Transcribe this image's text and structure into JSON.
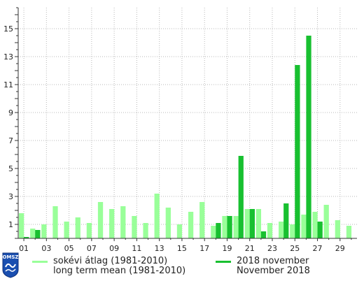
{
  "chart_data": {
    "type": "bar",
    "x": [
      1,
      2,
      3,
      4,
      5,
      6,
      7,
      8,
      9,
      10,
      11,
      12,
      13,
      14,
      15,
      16,
      17,
      18,
      19,
      20,
      21,
      22,
      23,
      24,
      25,
      26,
      27,
      28,
      29,
      30
    ],
    "x_tick_labels": [
      "01",
      "03",
      "05",
      "07",
      "09",
      "11",
      "13",
      "15",
      "17",
      "19",
      "21",
      "23",
      "25",
      "27",
      "29"
    ],
    "y_ticks": [
      1,
      3,
      5,
      7,
      9,
      11,
      13,
      15
    ],
    "ylim": [
      0,
      16.5
    ],
    "grid": true,
    "series": [
      {
        "name_lines": [
          "sokévi átlag (1981-2010)",
          "long term mean (1981-2010)"
        ],
        "color": "#99ff99",
        "values": [
          1.8,
          0.7,
          1.0,
          2.3,
          1.2,
          1.5,
          1.1,
          2.6,
          2.1,
          2.3,
          1.6,
          1.1,
          3.2,
          2.2,
          1.0,
          1.9,
          2.6,
          0.9,
          1.6,
          1.6,
          2.1,
          2.1,
          1.1,
          1.2,
          1.0,
          1.7,
          1.9,
          2.4,
          1.3,
          0.9
        ]
      },
      {
        "name_lines": [
          "2018 november",
          "November 2018"
        ],
        "color": "#18c030",
        "values": [
          0.1,
          0.6,
          0,
          0,
          0,
          0,
          0,
          0,
          0,
          0,
          0,
          0,
          0,
          0,
          0,
          0,
          0,
          1.1,
          1.6,
          5.9,
          2.1,
          0.5,
          0,
          2.5,
          12.4,
          14.5,
          1.2,
          0,
          0,
          0
        ]
      }
    ]
  },
  "logo": {
    "text": "OMSZ"
  }
}
